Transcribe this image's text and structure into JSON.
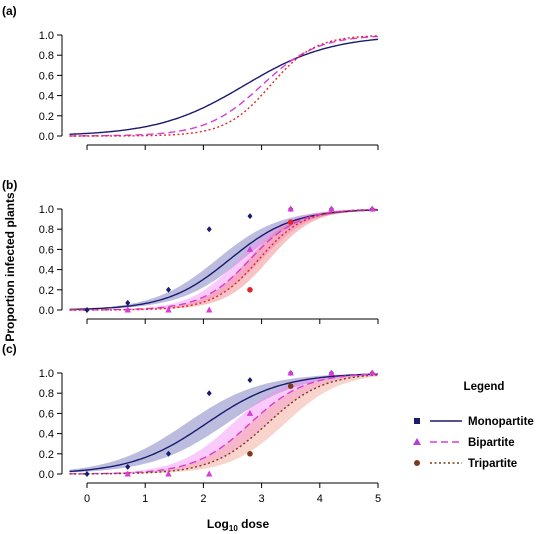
{
  "chart_data": [
    {
      "panel": "(a)",
      "type": "line",
      "ylim": [
        0,
        1.0
      ],
      "xlim": [
        0,
        5
      ],
      "ytick_labels": [
        "0.0",
        "0.2",
        "0.4",
        "0.6",
        "0.8",
        "1.0"
      ],
      "series": [
        {
          "name": "Monopartite",
          "ed50": 2.7,
          "slope": 1.35,
          "color": "#1a1a6e",
          "dash": "solid"
        },
        {
          "name": "Bipartite",
          "ed50": 3.0,
          "slope": 2.1,
          "color": "#d93bd9",
          "dash": "dashed"
        },
        {
          "name": "Tripartite",
          "ed50": 3.15,
          "slope": 2.6,
          "color": "#e0252b",
          "dash": "dotted"
        }
      ]
    },
    {
      "panel": "(b)",
      "type": "line",
      "ylim": [
        0,
        1.0
      ],
      "xlim": [
        0,
        5
      ],
      "ytick_labels": [
        "0.0",
        "0.2",
        "0.4",
        "0.6",
        "0.8",
        "1.0"
      ],
      "series": [
        {
          "name": "Monopartite",
          "ed50": 2.45,
          "slope": 1.85,
          "band_shift": 0.22,
          "color": "#1a1a6e",
          "band_color": "#6b6bb8",
          "dash": "solid",
          "points": [
            [
              0,
              0.0
            ],
            [
              0.7,
              0.07
            ],
            [
              1.4,
              0.2
            ],
            [
              2.1,
              0.8
            ],
            [
              2.8,
              0.93
            ],
            [
              3.5,
              1.0
            ],
            [
              4.2,
              1.0
            ],
            [
              4.9,
              1.0
            ]
          ],
          "marker": "diamond"
        },
        {
          "name": "Bipartite",
          "ed50": 2.8,
          "slope": 2.4,
          "band_shift": 0.2,
          "color": "#d93bd9",
          "band_color": "#f48cf4",
          "dash": "dashed",
          "points": [
            [
              0.7,
              0.0
            ],
            [
              1.4,
              0.0
            ],
            [
              2.1,
              0.0
            ],
            [
              2.8,
              0.6
            ],
            [
              3.5,
              1.0
            ],
            [
              4.2,
              1.0
            ],
            [
              4.9,
              1.0
            ]
          ],
          "marker": "triangle"
        },
        {
          "name": "Tripartite",
          "ed50": 2.95,
          "slope": 2.6,
          "band_shift": 0.18,
          "color": "#e0252b",
          "band_color": "#f07a7a",
          "dash": "dotted",
          "points": [
            [
              2.8,
              0.2
            ],
            [
              3.5,
              0.87
            ]
          ],
          "marker": "circle"
        }
      ]
    },
    {
      "panel": "(c)",
      "type": "line",
      "ylim": [
        0,
        1.0
      ],
      "xlim": [
        0,
        5
      ],
      "xtick_labels": [
        "0",
        "1",
        "2",
        "3",
        "4",
        "5"
      ],
      "ytick_labels": [
        "0.0",
        "0.2",
        "0.4",
        "0.6",
        "0.8",
        "1.0"
      ],
      "xlabel_prefix": "Log",
      "xlabel_subscript": "10",
      "xlabel_suffix": " dose",
      "series": [
        {
          "name": "Monopartite",
          "ed50": 2.05,
          "slope": 1.55,
          "band_shift": 0.35,
          "color": "#1a1a6e",
          "band_color": "#6b6bb8",
          "dash": "solid",
          "points": [
            [
              0,
              0.0
            ],
            [
              0.7,
              0.07
            ],
            [
              1.4,
              0.2
            ],
            [
              2.1,
              0.8
            ],
            [
              2.8,
              0.93
            ],
            [
              3.5,
              1.0
            ],
            [
              4.2,
              1.0
            ],
            [
              4.9,
              1.0
            ]
          ],
          "marker": "diamond"
        },
        {
          "name": "Bipartite",
          "ed50": 2.8,
          "slope": 2.1,
          "band_shift": 0.3,
          "color": "#d93bd9",
          "band_color": "#f48cf4",
          "dash": "dashed",
          "points": [
            [
              0.7,
              0.0
            ],
            [
              1.4,
              0.0
            ],
            [
              2.1,
              0.0
            ],
            [
              2.8,
              0.6
            ],
            [
              3.5,
              1.0
            ],
            [
              4.2,
              1.0
            ],
            [
              4.9,
              1.0
            ]
          ],
          "marker": "triangle"
        },
        {
          "name": "Tripartite",
          "ed50": 3.1,
          "slope": 2.1,
          "band_shift": 0.3,
          "color": "#7a3b1a",
          "band_color": "#f2a090",
          "dash": "dotted",
          "points": [
            [
              2.8,
              0.2
            ],
            [
              3.5,
              0.87
            ]
          ],
          "marker": "circle",
          "marker_color": "#7a3b1a"
        }
      ]
    }
  ],
  "ylabel": "Proportion infected plants",
  "legend": {
    "title": "Legend",
    "items": [
      {
        "label": "Monopartite",
        "marker": "square",
        "marker_color": "#1a1a6e",
        "line_color": "#1a1a6e",
        "dash": "solid"
      },
      {
        "label": "Bipartite",
        "marker": "triangle",
        "marker_color": "#b040e0",
        "line_color": "#d93bd9",
        "dash": "dashed"
      },
      {
        "label": "Tripartite",
        "marker": "circle",
        "marker_color": "#7a3b1a",
        "line_color": "#7a3b1a",
        "dash": "dotted"
      }
    ]
  }
}
